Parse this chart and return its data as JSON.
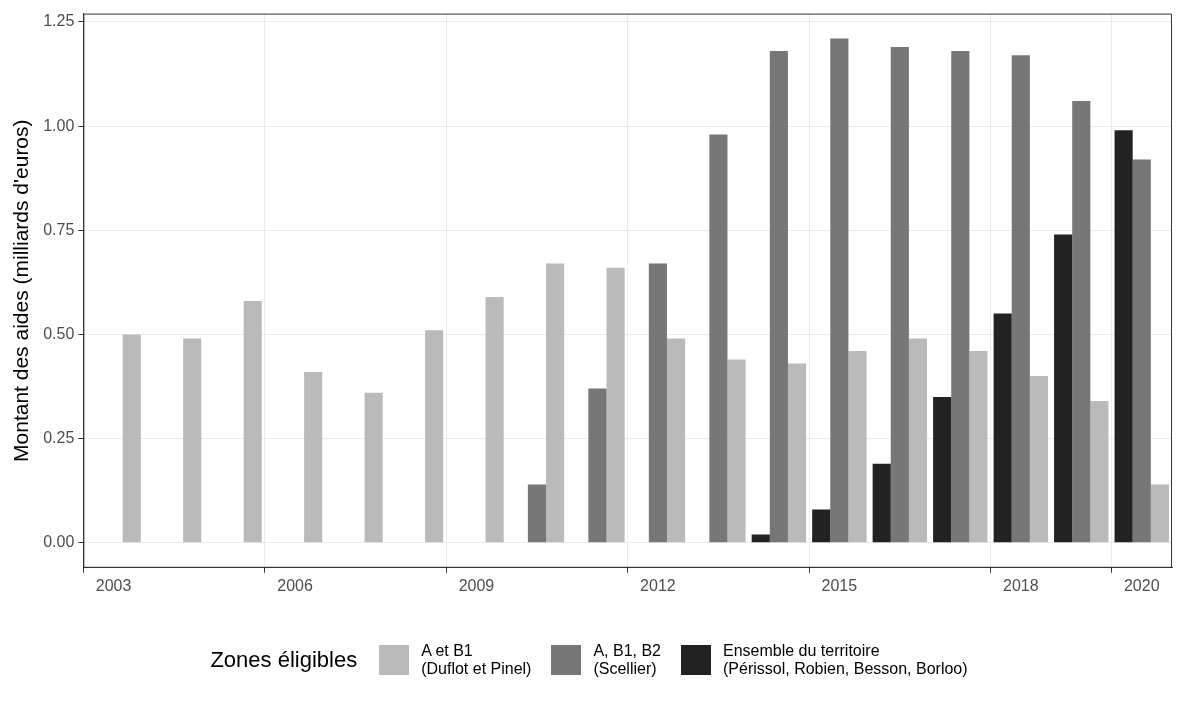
{
  "chart_data": {
    "type": "bar",
    "ylabel": "Montant des aides (milliards d'euros)",
    "legend_title": "Zones éligibles",
    "categories": [
      "2003",
      null,
      null,
      "2006",
      null,
      null,
      "2009",
      null,
      null,
      "2012",
      null,
      null,
      "2015",
      null,
      null,
      "2018",
      null,
      "2020"
    ],
    "series": [
      {
        "name": "Ensemble du territoire\n(Périssol, Robien, Besson, Borloo)",
        "color": "#222222",
        "values": [
          null,
          null,
          null,
          null,
          null,
          null,
          null,
          null,
          null,
          null,
          null,
          0.02,
          0.08,
          0.19,
          0.35,
          0.55,
          0.74,
          0.99
        ]
      },
      {
        "name": "A, B1, B2\n(Scellier)",
        "color": "#777777",
        "values": [
          null,
          null,
          null,
          null,
          null,
          null,
          null,
          0.14,
          0.37,
          0.67,
          0.98,
          1.18,
          1.21,
          1.19,
          1.18,
          1.17,
          1.06,
          0.92
        ]
      },
      {
        "name": "A et B1\n(Duflot et Pinel)",
        "color": "#bababa",
        "values": [
          0.5,
          0.49,
          0.58,
          0.41,
          0.36,
          0.51,
          0.59,
          0.67,
          0.66,
          0.49,
          0.44,
          0.43,
          0.46,
          0.49,
          0.46,
          0.4,
          0.34,
          0.14
        ]
      }
    ],
    "ylim": [
      -0.06,
      1.27
    ],
    "yticks": [
      {
        "value": 0,
        "label": "0.00"
      },
      {
        "value": 0.25,
        "label": "0.25"
      },
      {
        "value": 0.5,
        "label": "0.50"
      },
      {
        "value": 0.75,
        "label": "0.75"
      },
      {
        "value": 1,
        "label": "1.00"
      },
      {
        "value": 1.25,
        "label": "1.25"
      }
    ],
    "grid": true,
    "legend": "bottom"
  }
}
